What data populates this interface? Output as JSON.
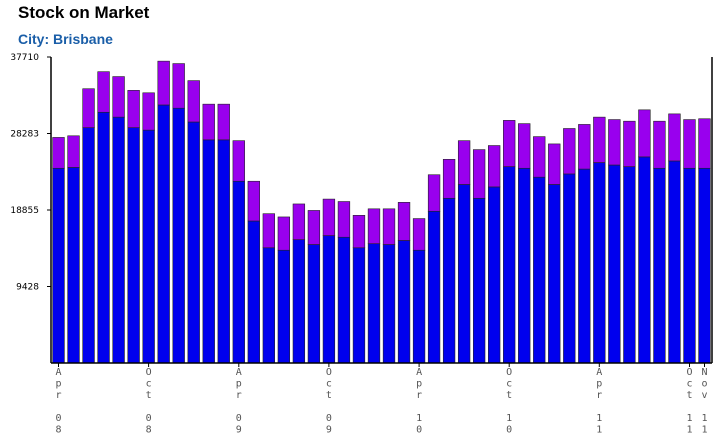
{
  "title": "Stock on Market",
  "subtitle": "City: Brisbane",
  "colors": {
    "base": "#0000ee",
    "top": "#9900ee",
    "outline": "#222222",
    "axis": "#000000",
    "subtitle": "#1a5ea8"
  },
  "chart_data": {
    "type": "bar",
    "stacked": true,
    "ylim": [
      0,
      37710
    ],
    "yticks": [
      "37710",
      "28283",
      "18855",
      "9428"
    ],
    "xlabels": [
      {
        "index": 0,
        "text": "Apr 08"
      },
      {
        "index": 6,
        "text": "Oct 08"
      },
      {
        "index": 12,
        "text": "Apr 09"
      },
      {
        "index": 18,
        "text": "Oct 09"
      },
      {
        "index": 24,
        "text": "Apr 10"
      },
      {
        "index": 30,
        "text": "Oct 10"
      },
      {
        "index": 36,
        "text": "Apr 11"
      },
      {
        "index": 42,
        "text": "Oct 11"
      },
      {
        "index": 43,
        "text": "Nov 11"
      }
    ],
    "series": [
      {
        "values": [
          24000,
          24100,
          29000,
          30900,
          30300,
          29000,
          28700,
          31800,
          31400,
          29700,
          27500,
          27500,
          22400,
          17500,
          14200,
          13900,
          15200,
          14600,
          15700,
          15500,
          14200,
          14700,
          14600,
          15100,
          13900,
          18700,
          20300,
          22000,
          20300,
          21700,
          24200,
          24000,
          22900,
          22000,
          23300,
          23900,
          24700,
          24400,
          24200,
          25400,
          24000,
          24900,
          24000,
          24000
        ]
      },
      {
        "values": [
          3800,
          3900,
          4800,
          5000,
          5000,
          4600,
          4600,
          5400,
          5500,
          5100,
          4400,
          4400,
          5000,
          4900,
          4200,
          4100,
          4400,
          4200,
          4500,
          4400,
          4000,
          4300,
          4400,
          4700,
          3900,
          4500,
          4800,
          5400,
          6000,
          5100,
          5700,
          5500,
          5000,
          5000,
          5600,
          5500,
          5600,
          5600,
          5600,
          5800,
          5800,
          5800,
          6000,
          6100
        ]
      }
    ]
  }
}
